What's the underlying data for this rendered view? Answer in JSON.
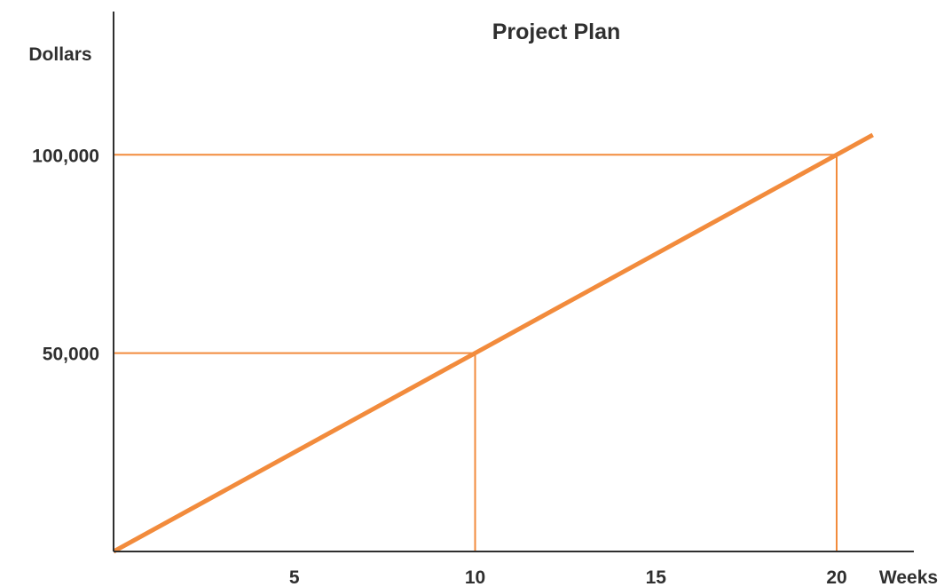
{
  "chart_data": {
    "type": "line",
    "title": "Project Plan",
    "xlabel": "Weeks",
    "ylabel": "Dollars",
    "x_ticks": [
      5,
      10,
      15,
      20
    ],
    "x_tick_labels": [
      "5",
      "10",
      "15",
      "20"
    ],
    "y_ticks": [
      50000,
      100000
    ],
    "y_tick_labels": [
      "50,000",
      "100,000"
    ],
    "xlim": [
      0,
      21
    ],
    "ylim": [
      0,
      110000
    ],
    "grid": false,
    "series": [
      {
        "x": [
          0,
          21
        ],
        "y": [
          0,
          105000
        ],
        "color": "#f28b3c"
      }
    ],
    "reference_points": [
      {
        "x": 10,
        "y": 50000
      },
      {
        "x": 20,
        "y": 100000
      }
    ],
    "axis_color": "#2f2f2f",
    "line_color": "#f28b3c"
  }
}
